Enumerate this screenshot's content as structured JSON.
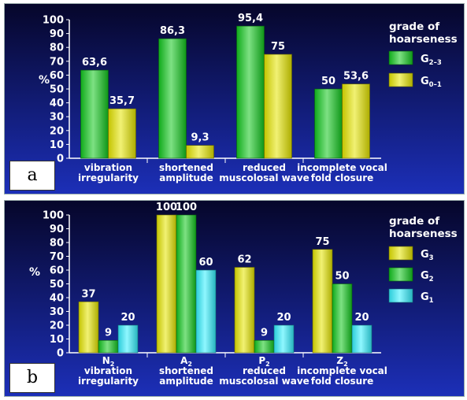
{
  "colors": {
    "background_top": "#06062a",
    "background_bottom": "#1c2fb8",
    "green": "#12c81e",
    "yellow": "#e6e600",
    "cyan": "#33f0ff"
  },
  "chart_data": [
    {
      "type": "bar",
      "panel_label": "a",
      "ylabel": "%",
      "ylim": [
        0,
        100
      ],
      "yticks": [
        0,
        10,
        20,
        30,
        40,
        50,
        60,
        70,
        80,
        90,
        100
      ],
      "categories": [
        {
          "line1": "vibration",
          "line2": "irregularity"
        },
        {
          "line1": "shortened",
          "line2": "amplitude"
        },
        {
          "line1": "reduced",
          "line2": "muscolosal wave"
        },
        {
          "line1": "incomplete vocal",
          "line2": "fold closure"
        }
      ],
      "series": [
        {
          "name_base": "G",
          "name_sub": "2–3",
          "color": "#12c81e",
          "values": [
            63.6,
            86.3,
            95.4,
            50
          ]
        },
        {
          "name_base": "G",
          "name_sub": "0–1",
          "color": "#e6e600",
          "values": [
            35.7,
            9.3,
            75,
            53.6
          ]
        }
      ],
      "value_labels": [
        [
          "63,6",
          "86,3",
          "95,4",
          "50"
        ],
        [
          "35,7",
          "9,3",
          "75",
          "53,6"
        ]
      ],
      "legend": {
        "title_line1": "grade of",
        "title_line2": "hoarseness",
        "placement": "right"
      }
    },
    {
      "type": "bar",
      "panel_label": "b",
      "ylabel": "%",
      "ylim": [
        0,
        100
      ],
      "yticks": [
        0,
        10,
        20,
        30,
        40,
        50,
        60,
        70,
        80,
        90,
        100
      ],
      "categories": [
        {
          "head_base": "N",
          "head_sub": "2",
          "line1": "vibration",
          "line2": "irregularity"
        },
        {
          "head_base": "A",
          "head_sub": "2",
          "line1": "shortened",
          "line2": "amplitude"
        },
        {
          "head_base": "P",
          "head_sub": "2",
          "line1": "reduced",
          "line2": "muscolosal wave"
        },
        {
          "head_base": "Z",
          "head_sub": "2",
          "line1": "incomplete vocal",
          "line2": "fold closure"
        }
      ],
      "series": [
        {
          "name_base": "G",
          "name_sub": "3",
          "color": "#e6e600",
          "values": [
            37,
            100,
            62,
            75
          ]
        },
        {
          "name_base": "G",
          "name_sub": "2",
          "color": "#12c81e",
          "values": [
            9,
            100,
            9,
            50
          ]
        },
        {
          "name_base": "G",
          "name_sub": "1",
          "color": "#33f0ff",
          "values": [
            20,
            60,
            20,
            20
          ]
        }
      ],
      "value_labels": [
        [
          "37",
          "100",
          "62",
          "75"
        ],
        [
          "9",
          "100",
          "9",
          "50"
        ],
        [
          "20",
          "60",
          "20",
          "20"
        ]
      ],
      "legend": {
        "title_line1": "grade of",
        "title_line2": "hoarseness",
        "placement": "right"
      }
    }
  ]
}
